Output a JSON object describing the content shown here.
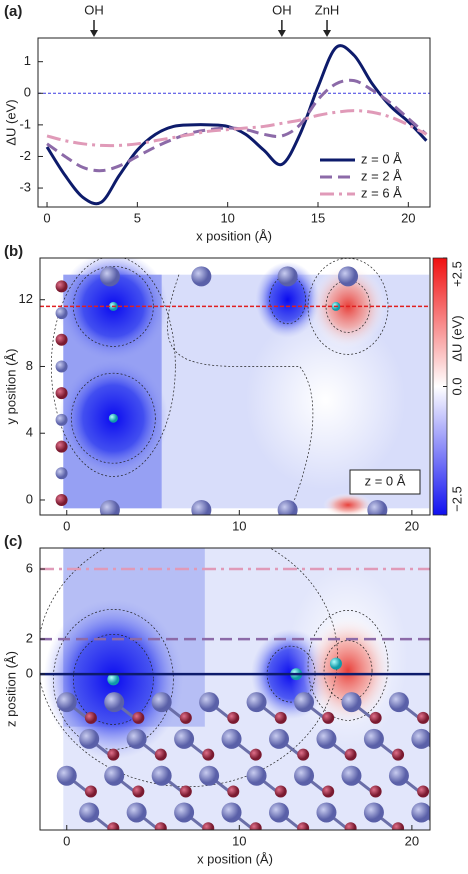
{
  "chart_data": [
    {
      "type": "line",
      "panel_label": "(a)",
      "xlabel": "x position (Å)",
      "ylabel": "ΔU (eV)",
      "xlim": [
        -0.5,
        21.2
      ],
      "ylim": [
        -3.6,
        1.75
      ],
      "xticks": [
        0,
        5,
        10,
        15,
        20
      ],
      "yticks": [
        -3,
        -2,
        -1,
        0,
        1
      ],
      "zero_line": 0,
      "legend": "lower right",
      "annotations": [
        {
          "text": "OH",
          "x": 2.6
        },
        {
          "text": "OH",
          "x": 13
        },
        {
          "text": "ZnH",
          "x": 15.5
        }
      ],
      "x": [
        0,
        1,
        2,
        3,
        4,
        5,
        6,
        7,
        8,
        9,
        10,
        11,
        12,
        13,
        14,
        15,
        16,
        17,
        18,
        19,
        20,
        21
      ],
      "series": [
        {
          "name": "z = 0 Å",
          "color": "#0d1b6b",
          "dash": "solid",
          "values": [
            -1.7,
            -2.6,
            -3.3,
            -3.45,
            -2.6,
            -1.8,
            -1.3,
            -1.05,
            -1.0,
            -1.0,
            -1.05,
            -1.3,
            -1.8,
            -2.25,
            -1.3,
            0.2,
            1.45,
            1.2,
            0.3,
            -0.4,
            -0.9,
            -1.5
          ]
        },
        {
          "name": "z = 2 Å",
          "color": "#8c6aa8",
          "dash": "dashed",
          "values": [
            -1.6,
            -2.0,
            -2.35,
            -2.45,
            -2.3,
            -2.0,
            -1.7,
            -1.45,
            -1.25,
            -1.15,
            -1.1,
            -1.15,
            -1.3,
            -1.35,
            -1.0,
            -0.2,
            0.3,
            0.4,
            0.1,
            -0.3,
            -0.8,
            -1.3
          ]
        },
        {
          "name": "z = 6 Å",
          "color": "#e09ab8",
          "dash": "dashdot",
          "values": [
            -1.35,
            -1.5,
            -1.6,
            -1.65,
            -1.65,
            -1.6,
            -1.5,
            -1.4,
            -1.3,
            -1.2,
            -1.15,
            -1.1,
            -1.05,
            -0.95,
            -0.85,
            -0.7,
            -0.6,
            -0.55,
            -0.6,
            -0.75,
            -1.0,
            -1.3
          ]
        }
      ]
    },
    {
      "type": "heatmap",
      "panel_label": "(b)",
      "ylabel": "y position (Å)",
      "note": "z = 0 Å",
      "xlim": [
        -1.55,
        21.05
      ],
      "ylim": [
        -0.9,
        14.5
      ],
      "xticks": [
        0,
        10,
        20
      ],
      "yticks": [
        0,
        4,
        8,
        12
      ],
      "hline": 11.6,
      "hline_color": "#e02020",
      "clim": [
        -2.5,
        2.5
      ],
      "clabel": "ΔU (eV)",
      "cticks": [
        {
          "value": 2.5,
          "label": "+2.5"
        },
        {
          "value": 0,
          "label": "0.0"
        },
        {
          "value": -2.5,
          "label": "−2.5"
        }
      ]
    },
    {
      "type": "heatmap",
      "panel_label": "(c)",
      "xlabel": "x position (Å)",
      "ylabel": "z position (Å)",
      "xlim": [
        -1.55,
        21.05
      ],
      "ylim": [
        -8.9,
        7.2
      ],
      "xticks": [
        0,
        10,
        20
      ],
      "yticks": [
        0,
        2,
        6
      ],
      "hlines": [
        0,
        2,
        6
      ]
    }
  ]
}
